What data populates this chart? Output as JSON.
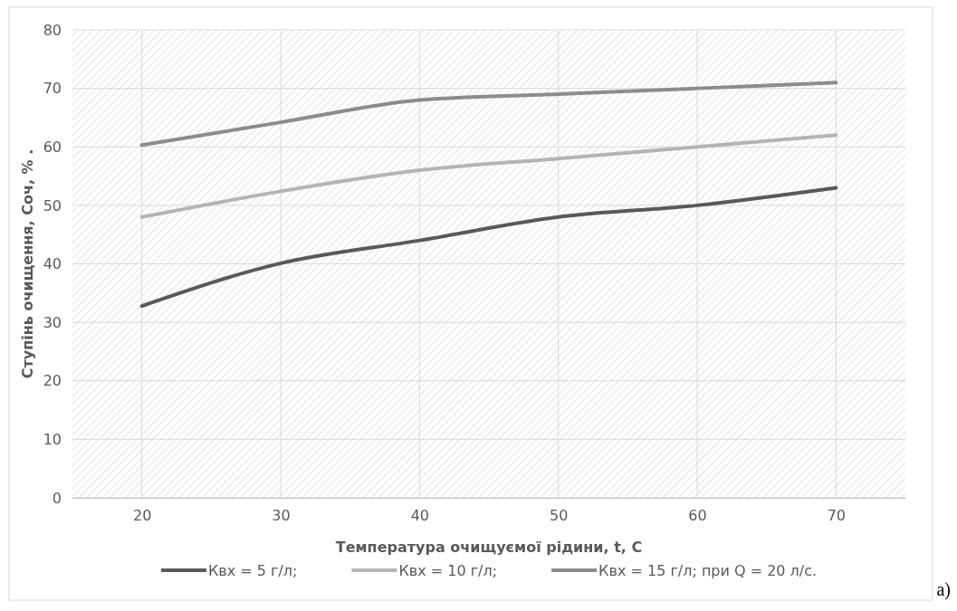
{
  "chart_data": {
    "type": "line",
    "xlabel": "Температура очищуємої рідини, t,  С",
    "ylabel": "Ступінь очищення,  Соч, %  .",
    "x": [
      20,
      30,
      40,
      50,
      60,
      70
    ],
    "xlim": [
      15,
      75
    ],
    "xticks": [
      20,
      30,
      40,
      50,
      60,
      70
    ],
    "ylim": [
      0,
      80
    ],
    "yticks": [
      0,
      10,
      20,
      30,
      40,
      50,
      60,
      70,
      80
    ],
    "series": [
      {
        "name": "Квх = 5 г/л;",
        "color": "#595959",
        "values": [
          32.8,
          40.1,
          44,
          48,
          50,
          53
        ]
      },
      {
        "name": "Квх = 10 г/л;",
        "color": "#b4b4b4",
        "values": [
          48,
          52.4,
          56,
          58,
          60,
          62
        ]
      },
      {
        "name": "Квх = 15  г/л; при Q = 20 л/с.",
        "color": "#8c8c8c",
        "values": [
          60.3,
          64.2,
          68,
          69,
          70,
          71
        ]
      }
    ],
    "grid": true,
    "legend": "bottom",
    "marker": "none",
    "line_style": "solid",
    "annotations": [
      "a)"
    ]
  }
}
